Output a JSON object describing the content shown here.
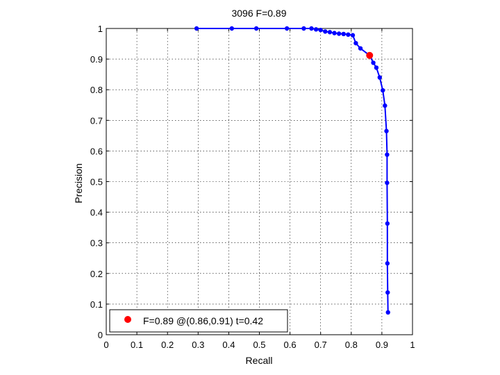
{
  "chart_data": {
    "type": "line",
    "title": "3096 F=0.89",
    "xlabel": "Recall",
    "ylabel": "Precision",
    "xlim": [
      0,
      1
    ],
    "ylim": [
      0,
      1
    ],
    "xticks": [
      "0",
      "0.1",
      "0.2",
      "0.3",
      "0.4",
      "0.5",
      "0.6",
      "0.7",
      "0.8",
      "0.9",
      "1"
    ],
    "yticks": [
      "0",
      "0.1",
      "0.2",
      "0.3",
      "0.4",
      "0.5",
      "0.6",
      "0.7",
      "0.8",
      "0.9",
      "1"
    ],
    "grid": true,
    "series": [
      {
        "color": "#0000ff",
        "points": [
          [
            0.295,
            1.0
          ],
          [
            0.41,
            1.0
          ],
          [
            0.49,
            1.0
          ],
          [
            0.59,
            1.0
          ],
          [
            0.645,
            1.0
          ],
          [
            0.67,
            1.0
          ],
          [
            0.685,
            0.997
          ],
          [
            0.7,
            0.995
          ],
          [
            0.715,
            0.99
          ],
          [
            0.73,
            0.988
          ],
          [
            0.745,
            0.985
          ],
          [
            0.76,
            0.983
          ],
          [
            0.775,
            0.982
          ],
          [
            0.79,
            0.98
          ],
          [
            0.805,
            0.978
          ],
          [
            0.815,
            0.952
          ],
          [
            0.83,
            0.935
          ],
          [
            0.86,
            0.912
          ],
          [
            0.872,
            0.888
          ],
          [
            0.882,
            0.872
          ],
          [
            0.893,
            0.84
          ],
          [
            0.903,
            0.798
          ],
          [
            0.91,
            0.748
          ],
          [
            0.915,
            0.665
          ],
          [
            0.917,
            0.588
          ],
          [
            0.917,
            0.496
          ],
          [
            0.918,
            0.363
          ],
          [
            0.918,
            0.233
          ],
          [
            0.919,
            0.138
          ],
          [
            0.92,
            0.073
          ]
        ]
      }
    ],
    "highlight": {
      "x": 0.86,
      "y": 0.912,
      "color": "#ff0000"
    },
    "legend": {
      "position": "bottom-left",
      "entries": [
        {
          "label": "F=0.89 @(0.86,0.91) t=0.42",
          "color": "#ff0000"
        }
      ]
    }
  }
}
